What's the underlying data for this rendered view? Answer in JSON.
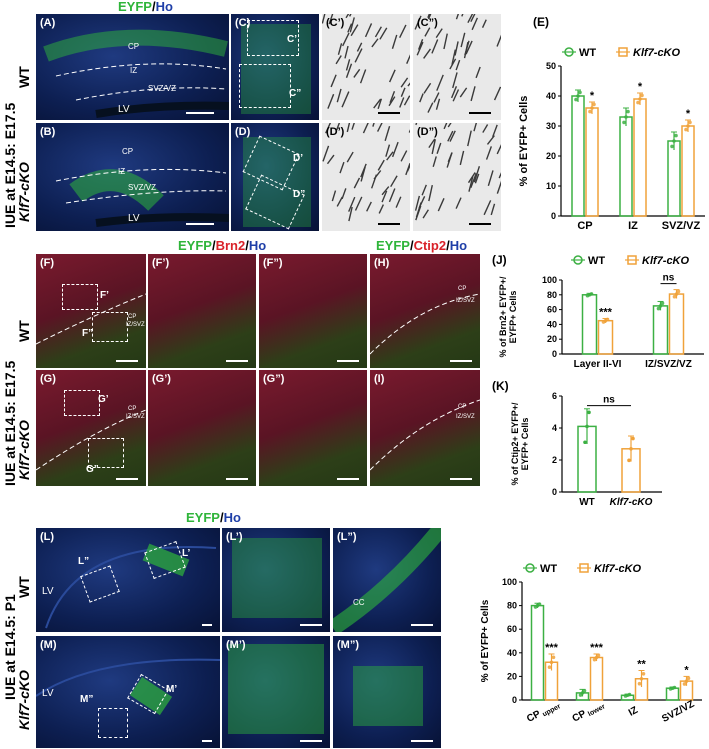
{
  "section1": {
    "title": {
      "part1": "EYFP",
      "sep": "/",
      "part2": "Ho"
    },
    "side_label": "IUE at E14.5: E17.5",
    "row_wt": "WT",
    "row_ko": "Klf7-cKO",
    "panels": {
      "A": "(A)",
      "B": "(B)",
      "C": "(C)",
      "D": "(D)",
      "C1": "(C’)",
      "C2": "(C”)",
      "D1": "(D’)",
      "D2": "(D”)"
    },
    "regions": {
      "cp": "CP",
      "iz": "IZ",
      "svz": "SVZ/VZ",
      "lv": "LV"
    },
    "boxes": {
      "c1": "C’",
      "c2": "C”",
      "d1": "D’",
      "d2": "D”"
    }
  },
  "section2": {
    "title1": {
      "part1": "EYFP",
      "sep1": "/",
      "part2": "Brn2",
      "sep2": "/",
      "part3": "Ho"
    },
    "title2": {
      "part1": "EYFP",
      "sep1": "/",
      "part2": "Ctip2",
      "sep2": "/",
      "part3": "Ho"
    },
    "side_label": "IUE at E14.5: E17.5",
    "row_wt": "WT",
    "row_ko": "Klf7-cKO",
    "panels": {
      "F": "(F)",
      "G": "(G)",
      "F1": "(F’)",
      "F2": "(F”)",
      "G1": "(G’)",
      "G2": "(G”)",
      "H": "(H)",
      "I": "(I)"
    },
    "regions": {
      "cp": "CP",
      "izsvz": "IZ/SVZ"
    },
    "boxes": {
      "f1": "F’",
      "f2": "F”",
      "g1": "G’",
      "g2": "G”"
    }
  },
  "section3": {
    "title": {
      "part1": "EYFP",
      "sep": "/",
      "part2": "Ho"
    },
    "side_label": "IUE at E14.5: P1",
    "row_wt": "WT",
    "row_ko": "Klf7-cKO",
    "panels": {
      "L": "(L)",
      "M": "(M)",
      "L1": "(L’)",
      "L2": "(L”)",
      "M1": "(M’)",
      "M2": "(M”)"
    },
    "regions": {
      "lv": "LV",
      "cc": "CC"
    },
    "boxes": {
      "l1": "L’",
      "l2": "L”",
      "m1": "M’",
      "m2": "M”"
    }
  },
  "colors": {
    "wt": "#3cb043",
    "ko": "#f0a23a",
    "green": "#2fb53a",
    "blue": "#1f3fa8",
    "red": "#d9232a"
  },
  "chart_data": [
    {
      "panel": "(E)",
      "type": "bar",
      "categories": [
        "CP",
        "IZ",
        "SVZ/VZ"
      ],
      "series": [
        {
          "name": "WT",
          "values": [
            40,
            33,
            25
          ]
        },
        {
          "name": "Klf7-cKO",
          "values": [
            36,
            39,
            30
          ]
        }
      ],
      "errors": [
        {
          "name": "WT",
          "values": [
            2,
            3,
            3
          ]
        },
        {
          "name": "Klf7-cKO",
          "values": [
            2,
            2,
            2
          ]
        }
      ],
      "significance": [
        "*",
        "*",
        "*"
      ],
      "ylabel": "% of EYFP+ Cells",
      "ylim": [
        0,
        50
      ],
      "yticks": [
        0,
        10,
        20,
        30,
        40,
        50
      ],
      "legend": "top"
    },
    {
      "panel": "(J)",
      "type": "bar",
      "categories": [
        "Layer II-VI",
        "IZ/SVZ/VZ"
      ],
      "series": [
        {
          "name": "WT",
          "values": [
            80,
            65
          ]
        },
        {
          "name": "Klf7-cKO",
          "values": [
            45,
            81
          ]
        }
      ],
      "errors": [
        {
          "name": "WT",
          "values": [
            2,
            6
          ]
        },
        {
          "name": "Klf7-cKO",
          "values": [
            3,
            6
          ]
        }
      ],
      "significance": [
        "***",
        "ns"
      ],
      "ylabel": "% of Brn2+ EYFP+/ EYFP+ Cells",
      "ylim": [
        0,
        100
      ],
      "yticks": [
        0,
        20,
        40,
        60,
        80,
        100
      ],
      "legend": "top"
    },
    {
      "panel": "(K)",
      "type": "bar",
      "categories": [
        "WT",
        "Klf7-cKO"
      ],
      "values": [
        4.1,
        2.7
      ],
      "errors": [
        1.1,
        0.8
      ],
      "significance": "ns",
      "ylabel": "% of Ctip2+ EYFP+/ EYFP+ Cells",
      "ylim": [
        0,
        6
      ],
      "yticks": [
        0,
        2,
        4,
        6
      ]
    },
    {
      "panel": "",
      "type": "bar",
      "categories": [
        "CP upper",
        "CP lower",
        "IZ",
        "SVZ/VZ"
      ],
      "category_main": [
        "CP",
        "CP",
        "IZ",
        "SVZ/VZ"
      ],
      "category_sub": [
        "upper",
        "lower",
        "",
        ""
      ],
      "series": [
        {
          "name": "WT",
          "values": [
            80,
            6,
            4,
            10
          ]
        },
        {
          "name": "Klf7-cKO",
          "values": [
            32,
            36,
            18,
            16
          ]
        }
      ],
      "errors": [
        {
          "name": "WT",
          "values": [
            2,
            3,
            1,
            1
          ]
        },
        {
          "name": "Klf7-cKO",
          "values": [
            7,
            3,
            7,
            4
          ]
        }
      ],
      "significance": [
        "***",
        "***",
        "**",
        "*"
      ],
      "ylabel": "% of EYFP+ Cells",
      "ylim": [
        0,
        100
      ],
      "yticks": [
        0,
        20,
        40,
        60,
        80,
        100
      ],
      "legend": "top"
    }
  ]
}
